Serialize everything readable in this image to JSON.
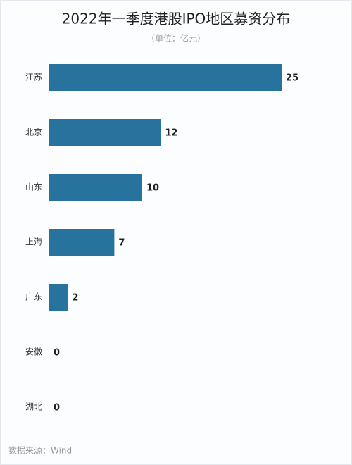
{
  "chart_data": {
    "type": "bar",
    "orientation": "horizontal",
    "title": "2022年一季度港股IPO地区募资分布",
    "subtitle": "（单位：亿元）",
    "categories": [
      "江苏",
      "北京",
      "山东",
      "上海",
      "广东",
      "安徽",
      "湖北"
    ],
    "values": [
      25,
      12,
      10,
      7,
      2,
      0,
      0
    ],
    "color": "#27739e",
    "source": "数据来源：Wind"
  }
}
